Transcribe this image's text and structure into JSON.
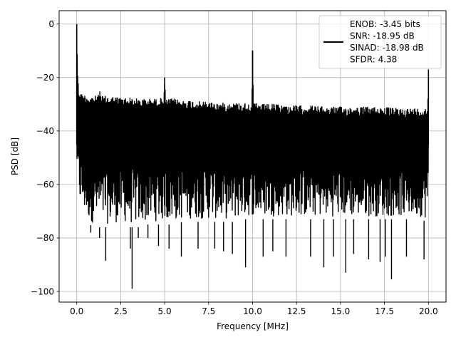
{
  "chart_data": {
    "type": "line",
    "title": "",
    "xlabel": "Frequency [MHz]",
    "ylabel": "PSD [dB]",
    "xlim": [
      -1.0,
      21.0
    ],
    "ylim": [
      -104.0,
      5.0
    ],
    "x_ticks": [
      0.0,
      2.5,
      5.0,
      7.5,
      10.0,
      12.5,
      15.0,
      17.5,
      20.0
    ],
    "x_tick_labels": [
      "0.0",
      "2.5",
      "5.0",
      "7.5",
      "10.0",
      "12.5",
      "15.0",
      "17.5",
      "20.0"
    ],
    "y_ticks": [
      0,
      -20,
      -40,
      -60,
      -80,
      -100
    ],
    "y_tick_labels": [
      "0",
      "−20",
      "−40",
      "−60",
      "−80",
      "−100"
    ],
    "grid": true,
    "legend_position": "top-right",
    "legend_entries": [
      "ENOB: -3.45 bits",
      "SNR: -18.95 dB",
      "SINAD: -18.98 dB",
      "SFDR: 4.38"
    ],
    "series": [
      {
        "color": "#000000",
        "x": [
          0.0,
          0.05,
          0.1,
          0.25,
          0.5,
          0.75,
          1.0,
          1.25,
          1.3,
          1.35,
          1.5,
          2.0,
          2.5,
          3.0,
          3.5,
          4.0,
          4.5,
          4.95,
          5.0,
          5.05,
          5.5,
          6.0,
          6.5,
          7.0,
          7.5,
          8.0,
          8.5,
          9.0,
          9.5,
          9.95,
          10.0,
          10.05,
          10.5,
          11.0,
          11.5,
          12.0,
          12.5,
          13.0,
          13.5,
          14.0,
          14.5,
          15.0,
          15.5,
          16.0,
          16.5,
          17.0,
          17.5,
          18.0,
          18.5,
          19.0,
          19.5,
          19.95,
          20.0
        ],
        "upper": [
          0,
          -16,
          -24,
          -26,
          -26.5,
          -27,
          -27,
          -26.5,
          -23.5,
          -26.5,
          -27,
          -27,
          -27.5,
          -27.5,
          -28,
          -28,
          -28,
          -27.5,
          -20,
          -28,
          -28,
          -28.5,
          -28.5,
          -29,
          -29,
          -29.5,
          -29.5,
          -29.5,
          -29.5,
          -29.5,
          -10,
          -29.5,
          -30,
          -30,
          -30,
          -30.5,
          -30.5,
          -30.5,
          -30.5,
          -31,
          -31,
          -31,
          -31,
          -31,
          -31,
          -31,
          -31,
          -31.5,
          -31.5,
          -31.5,
          -31.5,
          -31.5,
          -17
        ],
        "lower": [
          -58,
          -62,
          -66,
          -70,
          -73,
          -75,
          -76,
          -75,
          -76,
          -76,
          -76,
          -76,
          -75,
          -76,
          -76,
          -75,
          -75,
          -75,
          -74,
          -75,
          -75,
          -74,
          -74,
          -74,
          -74,
          -74,
          -74,
          -74,
          -73,
          -73,
          -73,
          -73,
          -73,
          -73,
          -73,
          -73,
          -73,
          -73,
          -73,
          -73,
          -73,
          -73,
          -73,
          -73,
          -73,
          -73,
          -73,
          -73,
          -73,
          -73,
          -73,
          -74,
          -76
        ],
        "dips": [
          [
            0.8,
            -78
          ],
          [
            1.3,
            -80
          ],
          [
            1.65,
            -88.5
          ],
          [
            3.05,
            -84
          ],
          [
            3.15,
            -99
          ],
          [
            3.5,
            -80
          ],
          [
            4.05,
            -80
          ],
          [
            4.65,
            -83
          ],
          [
            5.25,
            -84
          ],
          [
            5.95,
            -87
          ],
          [
            6.9,
            -84
          ],
          [
            7.85,
            -84
          ],
          [
            8.35,
            -85
          ],
          [
            8.85,
            -86
          ],
          [
            9.6,
            -91
          ],
          [
            10.6,
            -87
          ],
          [
            11.15,
            -85
          ],
          [
            11.9,
            -87
          ],
          [
            13.3,
            -87
          ],
          [
            14.05,
            -91
          ],
          [
            14.6,
            -87
          ],
          [
            15.3,
            -93
          ],
          [
            15.75,
            -86
          ],
          [
            16.6,
            -88
          ],
          [
            17.25,
            -89
          ],
          [
            17.55,
            -87
          ],
          [
            17.9,
            -95.5
          ],
          [
            18.75,
            -87
          ],
          [
            19.75,
            -88
          ]
        ]
      }
    ]
  }
}
